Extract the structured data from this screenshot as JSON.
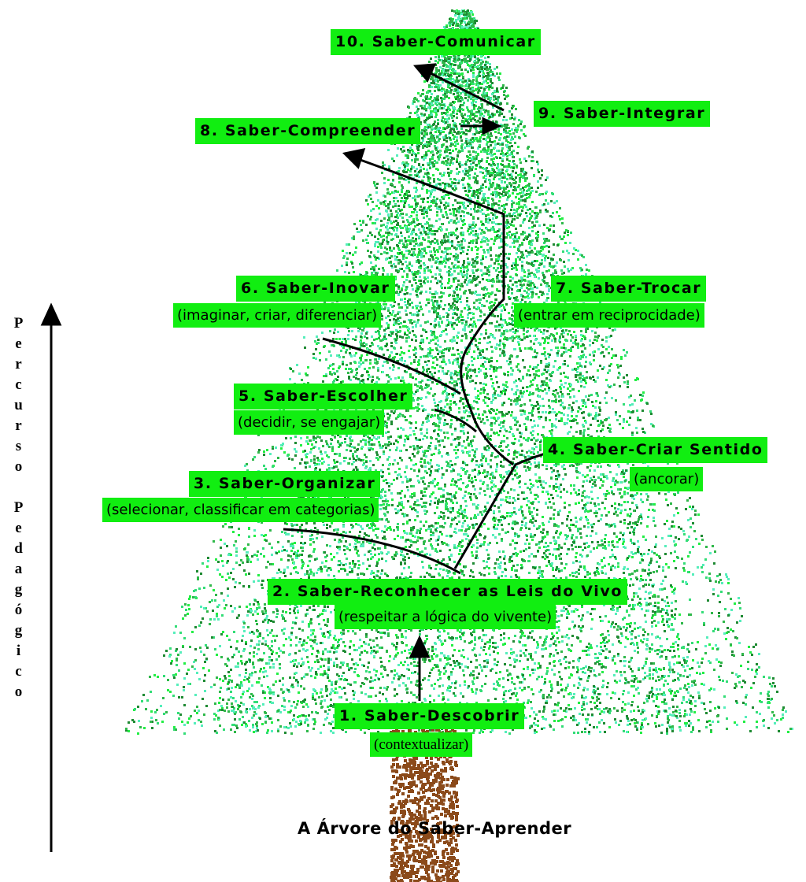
{
  "title": "A Árvore do Saber-Aprender",
  "axis_label": "Percurso Pedagógico",
  "nodes": [
    {
      "label": "1. Saber-Descobrir",
      "detail": "(contextualizar)"
    },
    {
      "label": "2. Saber-Reconhecer as Leis do Vivo",
      "detail": "(respeitar a lógica do vivente)"
    },
    {
      "label": "3. Saber-Organizar",
      "detail": "(selecionar, classificar em categorias)"
    },
    {
      "label": "4. Saber-Criar Sentido",
      "detail": "(ancorar)"
    },
    {
      "label": "5. Saber-Escolher",
      "detail": "(decidir, se engajar)"
    },
    {
      "label": "6. Saber-Inovar",
      "detail": "(imaginar, criar, diferenciar)"
    },
    {
      "label": "7. Saber-Trocar",
      "detail": "(entrar em reciprocidade)"
    },
    {
      "label": "8. Saber-Compreender"
    },
    {
      "label": "9. Saber-Integrar"
    },
    {
      "label": "10. Saber-Comunicar"
    }
  ]
}
